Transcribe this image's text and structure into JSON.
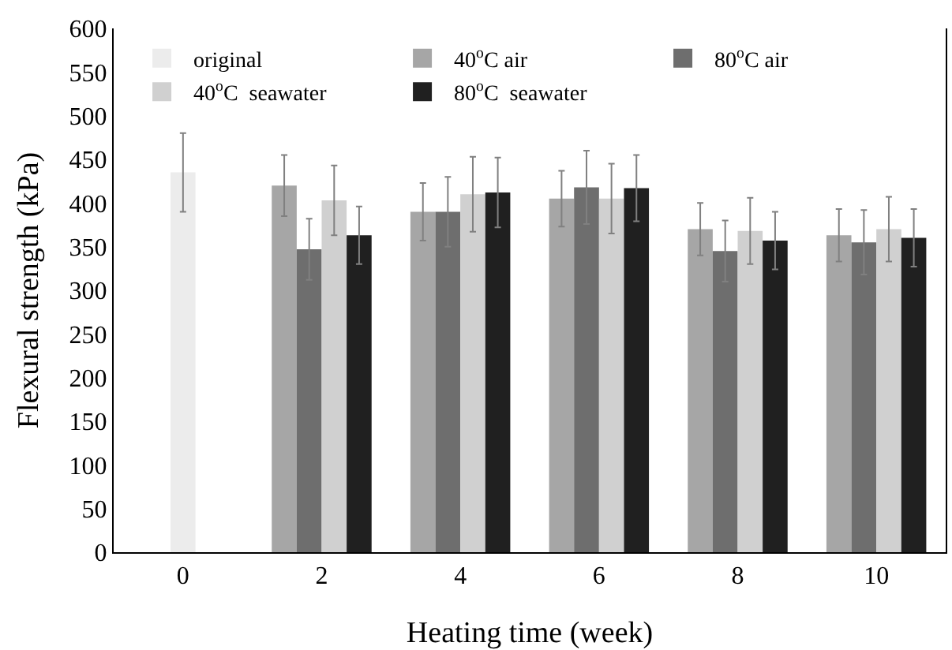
{
  "chart_data": {
    "type": "bar",
    "xlabel": "Heating time (week)",
    "ylabel": "Flexural strength (kPa)",
    "categories": [
      "0",
      "2",
      "4",
      "6",
      "8",
      "10"
    ],
    "series": [
      {
        "name": "original",
        "color": "#ececec",
        "values": [
          435,
          null,
          null,
          null,
          null,
          null
        ],
        "errors": [
          45,
          null,
          null,
          null,
          null,
          null
        ]
      },
      {
        "name": "40$^{o}$C air",
        "color": "#a6a6a6",
        "values": [
          null,
          420,
          390,
          405,
          370,
          363
        ],
        "errors": [
          null,
          35,
          33,
          32,
          30,
          30
        ]
      },
      {
        "name": "80$^{o}$C air",
        "color": "#6e6e6e",
        "values": [
          null,
          347,
          390,
          418,
          345,
          355
        ],
        "errors": [
          null,
          35,
          40,
          42,
          35,
          37
        ]
      },
      {
        "name": "40$^{o}$C  seawater",
        "color": "#d0d0d0",
        "values": [
          null,
          403,
          410,
          405,
          368,
          370
        ],
        "errors": [
          null,
          40,
          43,
          40,
          38,
          37
        ]
      },
      {
        "name": "80$^{o}$C  seawater",
        "color": "#202020",
        "values": [
          null,
          363,
          412,
          417,
          357,
          360
        ],
        "errors": [
          null,
          33,
          40,
          38,
          33,
          33
        ]
      }
    ],
    "ylim": [
      0,
      600
    ],
    "yticks": [
      0,
      50,
      100,
      150,
      200,
      250,
      300,
      350,
      400,
      450,
      500,
      550,
      600
    ],
    "grid": false,
    "legend": "top left"
  }
}
